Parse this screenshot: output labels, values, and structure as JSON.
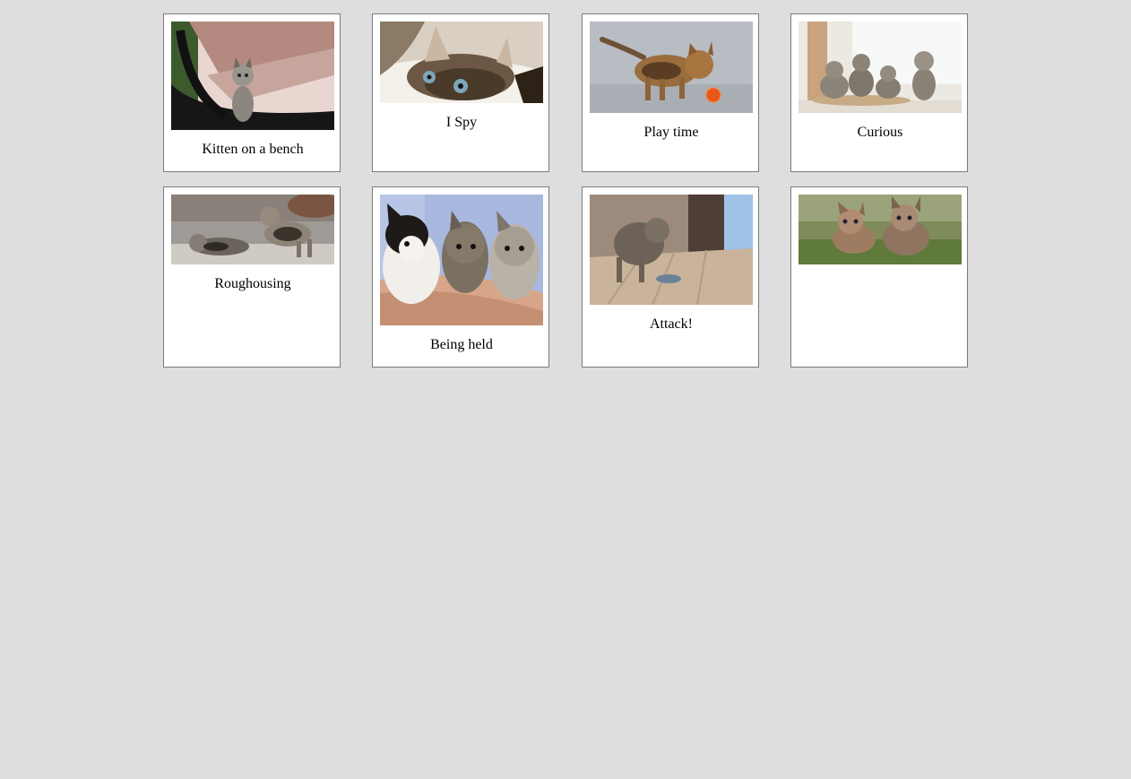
{
  "gallery": {
    "items": [
      {
        "caption": "Kitten on a bench",
        "image": "kitten-on-bench-photo"
      },
      {
        "caption": "I Spy",
        "image": "kitten-peeking-photo"
      },
      {
        "caption": "Play time",
        "image": "kitten-with-ball-photo"
      },
      {
        "caption": "Curious",
        "image": "four-kittens-window-photo"
      },
      {
        "caption": "Roughousing",
        "image": "kittens-playing-photo"
      },
      {
        "caption": "Being held",
        "image": "three-kittens-held-photo"
      },
      {
        "caption": "Attack!",
        "image": "kitten-pouncing-photo"
      },
      {
        "caption": "",
        "image": "two-kittens-grass-photo"
      }
    ]
  }
}
